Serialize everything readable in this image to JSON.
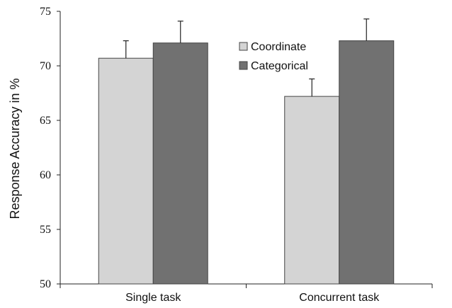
{
  "chart_data": {
    "type": "bar",
    "title": "",
    "xlabel": "",
    "ylabel": "Response Accuracy in %",
    "ylim": [
      50,
      75
    ],
    "yticks": [
      50,
      55,
      60,
      65,
      70,
      75
    ],
    "grid": false,
    "legend_position": "top-right",
    "categories": [
      "Single task",
      "Concurrent task"
    ],
    "series": [
      {
        "name": "Coordinate",
        "color": "#d4d4d4",
        "values": [
          70.7,
          67.2
        ],
        "error": [
          1.6,
          1.6
        ]
      },
      {
        "name": "Categorical",
        "color": "#717171",
        "values": [
          72.1,
          72.3
        ],
        "error": [
          2.0,
          2.0
        ]
      }
    ]
  }
}
